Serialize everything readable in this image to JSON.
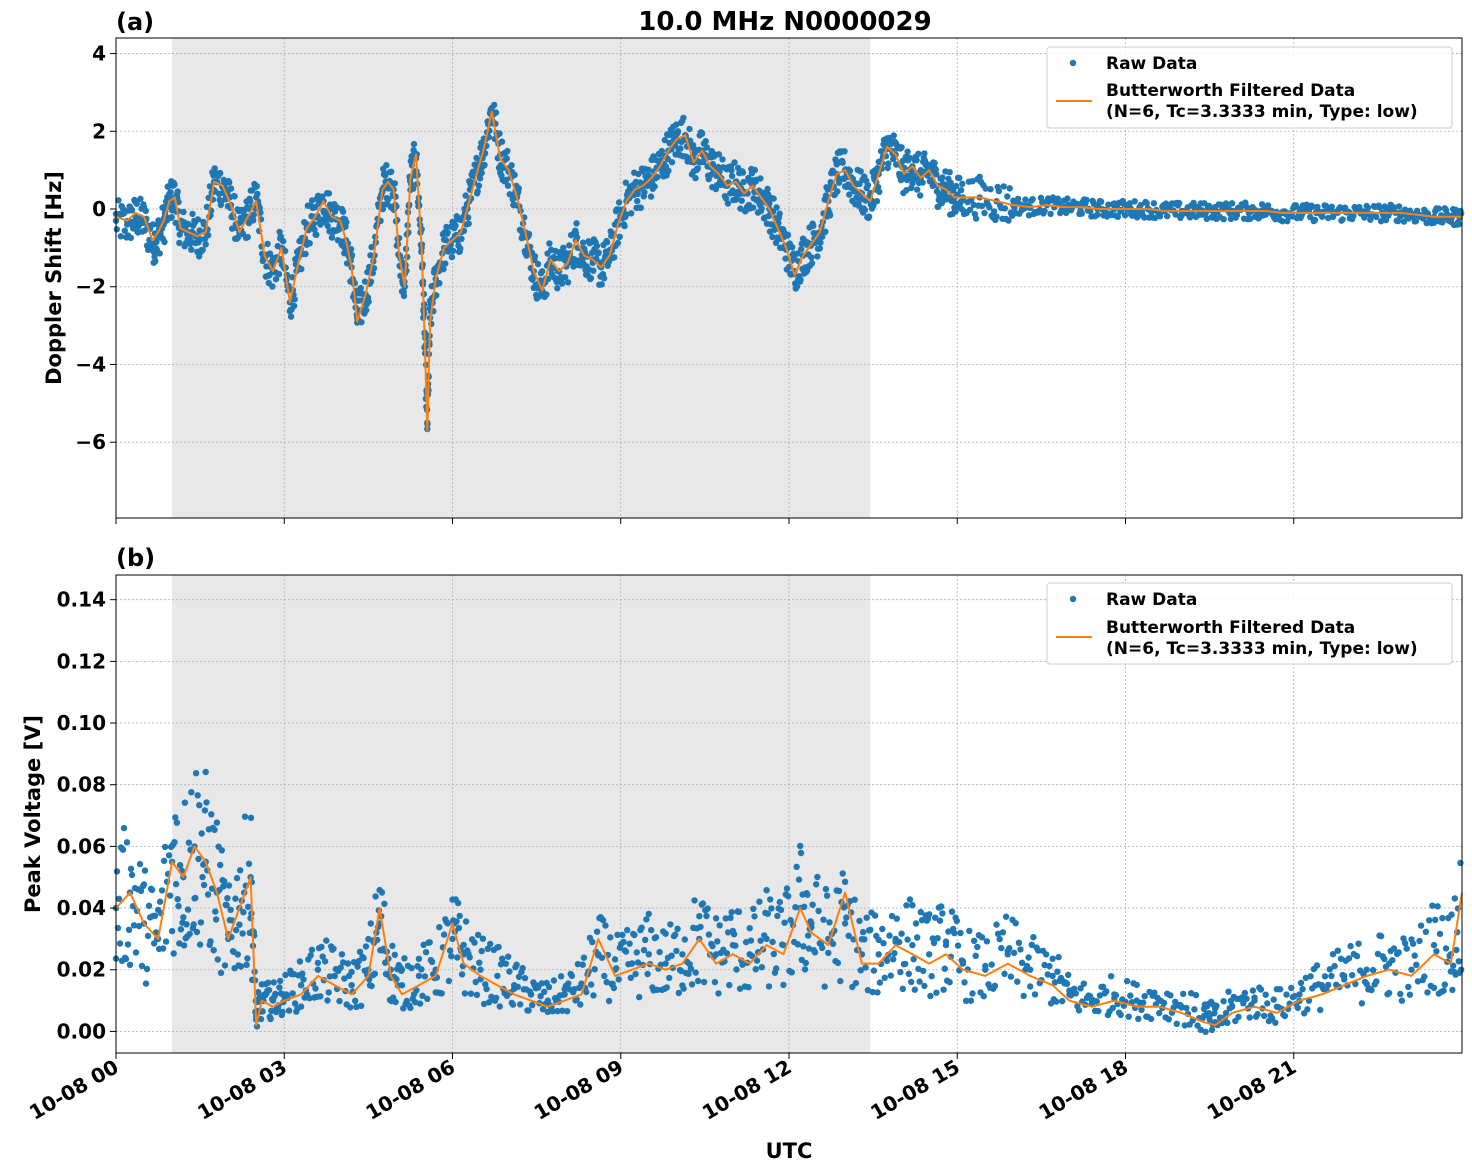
{
  "figure_title": "10.0 MHz N0000029",
  "xlabel": "UTC",
  "colors": {
    "raw": "#1f77b4",
    "filtered": "#ff7f0e",
    "shade": "#e8e8e8",
    "grid": "#b0b0b0"
  },
  "chart_data": [
    {
      "type": "scatter",
      "panel_label": "(a)",
      "title": "10.0 MHz N0000029",
      "ylabel": "Doppler Shift [Hz]",
      "xlabel": "",
      "xlim": [
        0,
        24
      ],
      "ylim": [
        -7.95,
        4.4
      ],
      "yticks": [
        4,
        2,
        0,
        -2,
        -4,
        -6
      ],
      "ytick_labels": [
        "4",
        "2",
        "0",
        "−2",
        "−4",
        "−6"
      ],
      "x_unit": "hours UTC on 10-08",
      "shaded_interval": [
        1.0,
        13.45
      ],
      "grid": true,
      "legend": {
        "position": "top-right",
        "entries": [
          {
            "label": "Raw Data",
            "marker": "dot"
          },
          {
            "label": "Butterworth Filtered Data",
            "label2": "(N=6, Tc=3.3333 min, Type: low)",
            "marker": "line"
          }
        ]
      },
      "series": [
        {
          "name": "Raw Data",
          "style": "points",
          "x": [
            0,
            0.2,
            0.35,
            0.5,
            0.65,
            0.75,
            0.85,
            0.95,
            1.05,
            1.15,
            1.3,
            1.45,
            1.6,
            1.75,
            1.9,
            2.05,
            2.2,
            2.35,
            2.5,
            2.65,
            2.8,
            2.95,
            3.1,
            3.25,
            3.4,
            3.55,
            3.7,
            3.85,
            4.0,
            4.1,
            4.2,
            4.3,
            4.45,
            4.6,
            4.75,
            4.85,
            4.95,
            5.05,
            5.15,
            5.25,
            5.35,
            5.45,
            5.5,
            5.55,
            5.6,
            5.7,
            5.85,
            6.0,
            6.15,
            6.3,
            6.45,
            6.55,
            6.7,
            6.85,
            7.0,
            7.15,
            7.3,
            7.45,
            7.6,
            7.75,
            7.9,
            8.05,
            8.2,
            8.35,
            8.5,
            8.65,
            8.8,
            8.95,
            9.1,
            9.25,
            9.4,
            9.55,
            9.7,
            9.85,
            10.0,
            10.15,
            10.3,
            10.45,
            10.6,
            10.75,
            10.9,
            11.05,
            11.2,
            11.35,
            11.5,
            11.65,
            11.8,
            11.95,
            12.1,
            12.25,
            12.4,
            12.55,
            12.7,
            12.85,
            13.0,
            13.15,
            13.3,
            13.45,
            13.6,
            13.75,
            13.9,
            14.05,
            14.2,
            14.35,
            14.5,
            14.65,
            14.8,
            14.95,
            15.1,
            15.4,
            15.7,
            16.0,
            16.3,
            16.6,
            16.9,
            17.2,
            17.5,
            17.8,
            18.1,
            18.4,
            18.7,
            19.0,
            19.3,
            19.6,
            19.9,
            20.2,
            20.5,
            20.8,
            21.1,
            21.4,
            21.7,
            22.0,
            22.3,
            22.6,
            22.9,
            23.2,
            23.5,
            23.8,
            24.0
          ],
          "y": [
            -0.3,
            -0.4,
            -0.2,
            -0.3,
            -0.9,
            -0.7,
            -0.4,
            0.2,
            0.3,
            -0.5,
            -0.6,
            -0.7,
            -0.6,
            0.7,
            0.6,
            0.1,
            -0.6,
            -0.2,
            0.3,
            -1.2,
            -1.6,
            -1.0,
            -2.4,
            -1.5,
            -0.5,
            -0.2,
            0.2,
            -0.2,
            -0.3,
            -0.8,
            -1.5,
            -2.8,
            -2.2,
            -1.2,
            0.5,
            0.7,
            0.5,
            -1.2,
            -2.0,
            0.8,
            1.3,
            -1.0,
            -3.2,
            -5.5,
            -2.8,
            -1.8,
            -1.0,
            -0.8,
            -0.6,
            0.2,
            1.0,
            1.5,
            2.6,
            1.4,
            1.0,
            0.3,
            -0.6,
            -1.6,
            -2.1,
            -1.3,
            -1.6,
            -1.4,
            -0.8,
            -1.2,
            -1.3,
            -1.5,
            -1.2,
            -0.4,
            0.2,
            0.5,
            0.6,
            0.8,
            1.1,
            1.5,
            1.8,
            1.9,
            1.2,
            1.5,
            1.1,
            0.9,
            0.6,
            0.7,
            0.4,
            0.6,
            0.3,
            0.0,
            -0.5,
            -1.0,
            -1.6,
            -1.2,
            -0.9,
            -0.6,
            0.2,
            0.9,
            1.0,
            0.6,
            0.4,
            0.2,
            0.9,
            1.6,
            1.4,
            0.9,
            1.1,
            0.8,
            1.0,
            0.6,
            0.5,
            0.3,
            0.3,
            0.3,
            0.2,
            0.1,
            0.05,
            0.1,
            0.05,
            0.05,
            0.0,
            0.0,
            0.0,
            0.0,
            -0.05,
            -0.05,
            -0.05,
            -0.05,
            -0.05,
            -0.05,
            -0.05,
            -0.1,
            -0.1,
            -0.1,
            -0.1,
            -0.1,
            -0.1,
            -0.1,
            -0.1,
            -0.15,
            -0.2,
            -0.2,
            -0.2
          ]
        },
        {
          "name": "Butterworth Filtered Data",
          "style": "line",
          "x": [
            0,
            0.2,
            0.35,
            0.5,
            0.65,
            0.75,
            0.85,
            0.95,
            1.05,
            1.15,
            1.3,
            1.45,
            1.6,
            1.75,
            1.9,
            2.05,
            2.2,
            2.35,
            2.5,
            2.65,
            2.8,
            2.95,
            3.1,
            3.25,
            3.4,
            3.55,
            3.7,
            3.85,
            4.0,
            4.1,
            4.2,
            4.3,
            4.45,
            4.6,
            4.75,
            4.85,
            4.95,
            5.05,
            5.15,
            5.25,
            5.35,
            5.45,
            5.5,
            5.55,
            5.6,
            5.7,
            5.85,
            6.0,
            6.15,
            6.3,
            6.45,
            6.55,
            6.7,
            6.85,
            7.0,
            7.15,
            7.3,
            7.45,
            7.6,
            7.75,
            7.9,
            8.05,
            8.2,
            8.35,
            8.5,
            8.65,
            8.8,
            8.95,
            9.1,
            9.25,
            9.4,
            9.55,
            9.7,
            9.85,
            10.0,
            10.15,
            10.3,
            10.45,
            10.6,
            10.75,
            10.9,
            11.05,
            11.2,
            11.35,
            11.5,
            11.65,
            11.8,
            11.95,
            12.1,
            12.25,
            12.4,
            12.55,
            12.7,
            12.85,
            13.0,
            13.15,
            13.3,
            13.45,
            13.6,
            13.75,
            13.9,
            14.05,
            14.2,
            14.35,
            14.5,
            14.65,
            14.8,
            14.95,
            15.1,
            15.4,
            15.7,
            16.0,
            16.3,
            16.6,
            16.9,
            17.2,
            17.5,
            17.8,
            18.1,
            18.4,
            18.7,
            19.0,
            19.3,
            19.6,
            19.9,
            20.2,
            20.5,
            20.8,
            21.1,
            21.4,
            21.7,
            22.0,
            22.3,
            22.6,
            22.9,
            23.2,
            23.5,
            23.8,
            24.0
          ],
          "y": [
            -0.2,
            -0.3,
            -0.1,
            -0.2,
            -0.8,
            -0.6,
            -0.3,
            0.2,
            0.3,
            -0.5,
            -0.6,
            -0.7,
            -0.6,
            0.7,
            0.6,
            0.1,
            -0.6,
            -0.2,
            0.2,
            -1.2,
            -1.6,
            -1.0,
            -2.4,
            -1.4,
            -0.5,
            -0.2,
            0.2,
            -0.2,
            -0.3,
            -0.8,
            -1.5,
            -2.9,
            -2.2,
            -1.2,
            0.5,
            0.7,
            0.5,
            -1.2,
            -2.0,
            0.8,
            1.4,
            -1.0,
            -3.2,
            -5.7,
            -2.9,
            -1.8,
            -1.0,
            -0.8,
            -0.6,
            0.2,
            1.0,
            1.5,
            2.5,
            1.3,
            1.0,
            0.3,
            -0.6,
            -1.6,
            -2.1,
            -1.3,
            -1.6,
            -1.4,
            -0.8,
            -1.2,
            -1.3,
            -1.5,
            -1.2,
            -0.4,
            0.2,
            0.5,
            0.6,
            0.8,
            1.1,
            1.5,
            1.8,
            1.9,
            1.2,
            1.5,
            1.1,
            0.9,
            0.6,
            0.7,
            0.4,
            0.6,
            0.3,
            0.0,
            -0.5,
            -1.0,
            -1.7,
            -1.2,
            -0.9,
            -0.6,
            0.2,
            0.9,
            1.0,
            0.6,
            0.4,
            0.2,
            0.9,
            1.6,
            1.4,
            0.9,
            1.1,
            0.8,
            1.0,
            0.6,
            0.5,
            0.3,
            0.3,
            0.3,
            0.2,
            0.1,
            0.05,
            0.1,
            0.05,
            0.05,
            0.0,
            0.0,
            0.0,
            0.0,
            -0.05,
            -0.05,
            -0.05,
            -0.05,
            -0.05,
            -0.05,
            -0.05,
            -0.1,
            -0.1,
            -0.1,
            -0.1,
            -0.1,
            -0.1,
            -0.1,
            -0.1,
            -0.15,
            -0.2,
            -0.2,
            -0.2
          ]
        }
      ]
    },
    {
      "type": "scatter",
      "panel_label": "(b)",
      "title": "",
      "ylabel": "Peak Voltage [V]",
      "xlabel": "UTC",
      "xlim": [
        0,
        24
      ],
      "ylim": [
        -0.007,
        0.148
      ],
      "yticks": [
        0.14,
        0.12,
        0.1,
        0.08,
        0.06,
        0.04,
        0.02,
        0.0
      ],
      "ytick_labels": [
        "0.14",
        "0.12",
        "0.10",
        "0.08",
        "0.06",
        "0.04",
        "0.02",
        "0.00"
      ],
      "xticks": [
        0,
        3,
        6,
        9,
        12,
        15,
        18,
        21
      ],
      "xtick_labels": [
        "10-08 00",
        "10-08 03",
        "10-08 06",
        "10-08 09",
        "10-08 12",
        "10-08 15",
        "10-08 18",
        "10-08 21"
      ],
      "shaded_interval": [
        1.0,
        13.45
      ],
      "grid": true,
      "legend": {
        "position": "top-right",
        "entries": [
          {
            "label": "Raw Data",
            "marker": "dot"
          },
          {
            "label": "Butterworth Filtered Data",
            "label2": "(N=6, Tc=3.3333 min, Type: low)",
            "marker": "line"
          }
        ]
      },
      "series": [
        {
          "name": "Raw Data",
          "style": "points",
          "x": [
            0,
            0.25,
            0.5,
            0.75,
            1.0,
            1.2,
            1.4,
            1.6,
            1.8,
            2.0,
            2.2,
            2.4,
            2.5,
            2.6,
            2.8,
            3.0,
            3.3,
            3.6,
            3.9,
            4.2,
            4.5,
            4.7,
            4.9,
            5.1,
            5.4,
            5.7,
            6.0,
            6.2,
            6.5,
            6.8,
            7.1,
            7.4,
            7.7,
            8.0,
            8.3,
            8.6,
            8.9,
            9.2,
            9.5,
            9.8,
            10.1,
            10.4,
            10.7,
            11.0,
            11.3,
            11.6,
            11.9,
            12.2,
            12.4,
            12.7,
            13.0,
            13.3,
            13.6,
            13.9,
            14.2,
            14.5,
            14.8,
            15.1,
            15.5,
            15.9,
            16.3,
            16.7,
            17.0,
            17.4,
            17.8,
            18.2,
            18.6,
            19.0,
            19.4,
            19.6,
            19.9,
            20.3,
            20.7,
            21.1,
            21.5,
            21.9,
            22.3,
            22.7,
            23.1,
            23.5,
            23.8,
            24.0
          ],
          "y": [
            0.04,
            0.045,
            0.035,
            0.03,
            0.055,
            0.05,
            0.06,
            0.055,
            0.045,
            0.03,
            0.04,
            0.05,
            0.005,
            0.01,
            0.01,
            0.012,
            0.015,
            0.02,
            0.018,
            0.015,
            0.02,
            0.035,
            0.02,
            0.015,
            0.018,
            0.02,
            0.03,
            0.025,
            0.02,
            0.018,
            0.015,
            0.012,
            0.01,
            0.012,
            0.015,
            0.025,
            0.02,
            0.022,
            0.025,
            0.022,
            0.025,
            0.03,
            0.025,
            0.028,
            0.025,
            0.03,
            0.028,
            0.04,
            0.035,
            0.03,
            0.035,
            0.025,
            0.025,
            0.03,
            0.028,
            0.025,
            0.028,
            0.022,
            0.02,
            0.025,
            0.02,
            0.018,
            0.012,
            0.01,
            0.012,
            0.01,
            0.01,
            0.008,
            0.005,
            0.003,
            0.008,
            0.01,
            0.008,
            0.012,
            0.015,
            0.018,
            0.02,
            0.022,
            0.02,
            0.028,
            0.025,
            0.04
          ]
        },
        {
          "name": "Butterworth Filtered Data",
          "style": "line",
          "x": [
            0,
            0.25,
            0.5,
            0.75,
            1.0,
            1.2,
            1.4,
            1.6,
            1.8,
            2.0,
            2.2,
            2.4,
            2.5,
            2.6,
            2.8,
            3.0,
            3.3,
            3.6,
            3.9,
            4.2,
            4.5,
            4.7,
            4.9,
            5.1,
            5.4,
            5.7,
            6.0,
            6.2,
            6.5,
            6.8,
            7.1,
            7.4,
            7.7,
            8.0,
            8.3,
            8.6,
            8.9,
            9.2,
            9.5,
            9.8,
            10.1,
            10.4,
            10.7,
            11.0,
            11.3,
            11.6,
            11.9,
            12.2,
            12.4,
            12.7,
            13.0,
            13.3,
            13.6,
            13.9,
            14.2,
            14.5,
            14.8,
            15.1,
            15.5,
            15.9,
            16.3,
            16.7,
            17.0,
            17.4,
            17.8,
            18.2,
            18.6,
            19.0,
            19.4,
            19.6,
            19.9,
            20.3,
            20.7,
            21.1,
            21.5,
            21.9,
            22.3,
            22.7,
            23.1,
            23.5,
            23.8,
            24.0
          ],
          "y": [
            0.04,
            0.045,
            0.035,
            0.03,
            0.055,
            0.05,
            0.06,
            0.055,
            0.045,
            0.03,
            0.04,
            0.05,
            0.002,
            0.01,
            0.008,
            0.01,
            0.012,
            0.018,
            0.015,
            0.012,
            0.018,
            0.04,
            0.018,
            0.012,
            0.015,
            0.018,
            0.035,
            0.022,
            0.018,
            0.015,
            0.012,
            0.01,
            0.008,
            0.01,
            0.012,
            0.03,
            0.018,
            0.02,
            0.022,
            0.02,
            0.022,
            0.03,
            0.022,
            0.025,
            0.022,
            0.028,
            0.025,
            0.04,
            0.032,
            0.028,
            0.045,
            0.022,
            0.022,
            0.028,
            0.025,
            0.022,
            0.025,
            0.02,
            0.018,
            0.022,
            0.018,
            0.015,
            0.01,
            0.008,
            0.01,
            0.008,
            0.008,
            0.006,
            0.003,
            0.002,
            0.006,
            0.008,
            0.006,
            0.01,
            0.012,
            0.015,
            0.018,
            0.02,
            0.018,
            0.025,
            0.022,
            0.045
          ]
        }
      ]
    }
  ]
}
